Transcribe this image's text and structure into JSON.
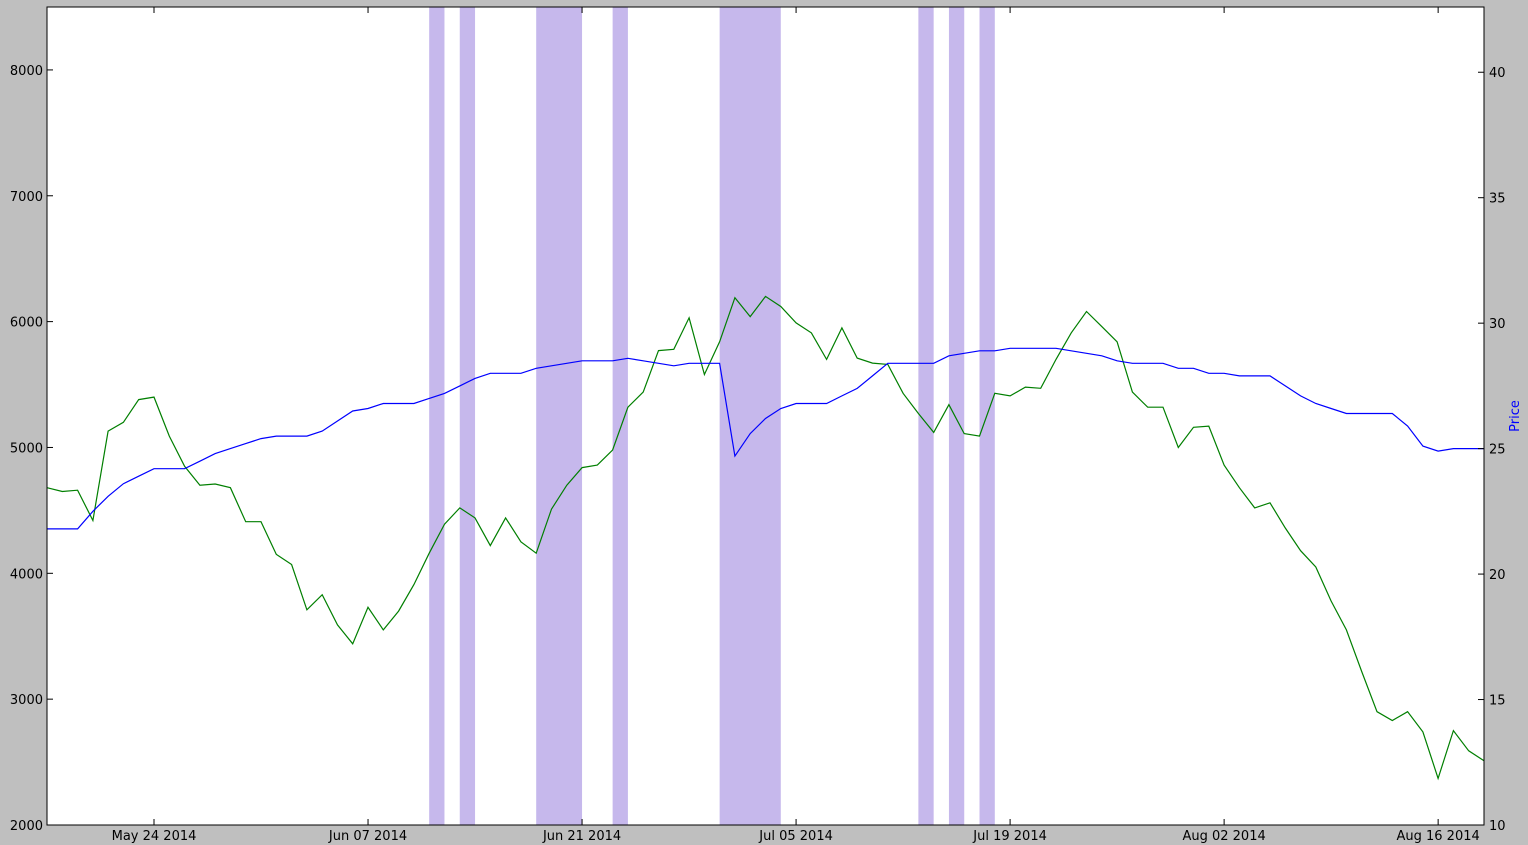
{
  "chart_data": {
    "type": "line",
    "title": "",
    "xlabel": "",
    "ylabel_left": "",
    "ylabel_right": "Price",
    "grid": false,
    "x_range": [
      "2014-05-17",
      "2014-08-19"
    ],
    "x_ticks": [
      {
        "date": "2014-05-24",
        "label": "May 24 2014"
      },
      {
        "date": "2014-06-07",
        "label": "Jun 07 2014"
      },
      {
        "date": "2014-06-21",
        "label": "Jun 21 2014"
      },
      {
        "date": "2014-07-05",
        "label": "Jul 05 2014"
      },
      {
        "date": "2014-07-19",
        "label": "Jul 19 2014"
      },
      {
        "date": "2014-08-02",
        "label": "Aug 02 2014"
      },
      {
        "date": "2014-08-16",
        "label": "Aug 16 2014"
      }
    ],
    "y_left": {
      "min": 2000,
      "max": 8500,
      "ticks": [
        2000,
        3000,
        4000,
        5000,
        6000,
        7000,
        8000
      ]
    },
    "y_right": {
      "min": 10,
      "max": 42.6,
      "ticks": [
        10,
        15,
        20,
        25,
        30,
        35,
        40
      ]
    },
    "shaded_ranges": [
      [
        "2014-06-11",
        "2014-06-12"
      ],
      [
        "2014-06-13",
        "2014-06-14"
      ],
      [
        "2014-06-18",
        "2014-06-21"
      ],
      [
        "2014-06-23",
        "2014-06-24"
      ],
      [
        "2014-06-30",
        "2014-07-04"
      ],
      [
        "2014-07-13",
        "2014-07-14"
      ],
      [
        "2014-07-15",
        "2014-07-16"
      ],
      [
        "2014-07-17",
        "2014-07-18"
      ]
    ],
    "shade_color": "#c6b8ec",
    "series": [
      {
        "axis": "left",
        "color": "#007f00",
        "x": [
          "2014-05-17",
          "2014-05-18",
          "2014-05-19",
          "2014-05-20",
          "2014-05-21",
          "2014-05-22",
          "2014-05-23",
          "2014-05-24",
          "2014-05-25",
          "2014-05-26",
          "2014-05-27",
          "2014-05-28",
          "2014-05-29",
          "2014-05-30",
          "2014-05-31",
          "2014-06-01",
          "2014-06-02",
          "2014-06-03",
          "2014-06-04",
          "2014-06-05",
          "2014-06-06",
          "2014-06-07",
          "2014-06-08",
          "2014-06-09",
          "2014-06-10",
          "2014-06-11",
          "2014-06-12",
          "2014-06-13",
          "2014-06-14",
          "2014-06-15",
          "2014-06-16",
          "2014-06-17",
          "2014-06-18",
          "2014-06-19",
          "2014-06-20",
          "2014-06-21",
          "2014-06-22",
          "2014-06-23",
          "2014-06-24",
          "2014-06-25",
          "2014-06-26",
          "2014-06-27",
          "2014-06-28",
          "2014-06-29",
          "2014-06-30",
          "2014-07-01",
          "2014-07-02",
          "2014-07-03",
          "2014-07-04",
          "2014-07-05",
          "2014-07-06",
          "2014-07-07",
          "2014-07-08",
          "2014-07-09",
          "2014-07-10",
          "2014-07-11",
          "2014-07-12",
          "2014-07-13",
          "2014-07-14",
          "2014-07-15",
          "2014-07-16",
          "2014-07-17",
          "2014-07-18",
          "2014-07-19",
          "2014-07-20",
          "2014-07-21",
          "2014-07-22",
          "2014-07-23",
          "2014-07-24",
          "2014-07-25",
          "2014-07-26",
          "2014-07-27",
          "2014-07-28",
          "2014-07-29",
          "2014-07-30",
          "2014-07-31",
          "2014-08-01",
          "2014-08-02",
          "2014-08-03",
          "2014-08-04",
          "2014-08-05",
          "2014-08-06",
          "2014-08-07",
          "2014-08-08",
          "2014-08-09",
          "2014-08-10",
          "2014-08-11",
          "2014-08-12",
          "2014-08-13",
          "2014-08-14",
          "2014-08-15",
          "2014-08-16",
          "2014-08-17",
          "2014-08-18",
          "2014-08-19"
        ],
        "y": [
          4680,
          4650,
          4660,
          4420,
          5130,
          5200,
          5380,
          5400,
          5090,
          4850,
          4700,
          4710,
          4680,
          4410,
          4410,
          4150,
          4070,
          3710,
          3830,
          3590,
          3440,
          3730,
          3550,
          3700,
          3910,
          4160,
          4390,
          4520,
          4440,
          4220,
          4440,
          4250,
          4160,
          4510,
          4700,
          4840,
          4860,
          4980,
          5320,
          5440,
          5770,
          5780,
          6030,
          5580,
          5840,
          6190,
          6040,
          6200,
          6120,
          5990,
          5910,
          5700,
          5950,
          5710,
          5670,
          5660,
          5430,
          5270,
          5120,
          5340,
          5110,
          5090,
          5430,
          5410,
          5480,
          5470,
          5700,
          5910,
          6080,
          5960,
          5840,
          5440,
          5320,
          5320,
          5000,
          5160,
          5170,
          4860,
          4680,
          4520,
          4560,
          4360,
          4180,
          4050,
          3780,
          3550,
          3220,
          2900,
          2830,
          2900,
          2740,
          2370,
          2750,
          2590,
          2510
        ]
      },
      {
        "axis": "right",
        "color": "#0000ff",
        "x": [
          "2014-05-17",
          "2014-05-18",
          "2014-05-19",
          "2014-05-20",
          "2014-05-21",
          "2014-05-22",
          "2014-05-23",
          "2014-05-24",
          "2014-05-25",
          "2014-05-26",
          "2014-05-27",
          "2014-05-28",
          "2014-05-29",
          "2014-05-30",
          "2014-05-31",
          "2014-06-01",
          "2014-06-02",
          "2014-06-03",
          "2014-06-04",
          "2014-06-05",
          "2014-06-06",
          "2014-06-07",
          "2014-06-08",
          "2014-06-09",
          "2014-06-10",
          "2014-06-11",
          "2014-06-12",
          "2014-06-13",
          "2014-06-14",
          "2014-06-15",
          "2014-06-16",
          "2014-06-17",
          "2014-06-18",
          "2014-06-19",
          "2014-06-20",
          "2014-06-21",
          "2014-06-22",
          "2014-06-23",
          "2014-06-24",
          "2014-06-25",
          "2014-06-26",
          "2014-06-27",
          "2014-06-28",
          "2014-06-29",
          "2014-06-30",
          "2014-07-01",
          "2014-07-02",
          "2014-07-03",
          "2014-07-04",
          "2014-07-05",
          "2014-07-06",
          "2014-07-07",
          "2014-07-08",
          "2014-07-09",
          "2014-07-10",
          "2014-07-11",
          "2014-07-12",
          "2014-07-13",
          "2014-07-14",
          "2014-07-15",
          "2014-07-16",
          "2014-07-17",
          "2014-07-18",
          "2014-07-19",
          "2014-07-20",
          "2014-07-21",
          "2014-07-22",
          "2014-07-23",
          "2014-07-24",
          "2014-07-25",
          "2014-07-26",
          "2014-07-27",
          "2014-07-28",
          "2014-07-29",
          "2014-07-30",
          "2014-07-31",
          "2014-08-01",
          "2014-08-02",
          "2014-08-03",
          "2014-08-04",
          "2014-08-05",
          "2014-08-06",
          "2014-08-07",
          "2014-08-08",
          "2014-08-09",
          "2014-08-10",
          "2014-08-11",
          "2014-08-12",
          "2014-08-13",
          "2014-08-14",
          "2014-08-15",
          "2014-08-16",
          "2014-08-17",
          "2014-08-18",
          "2014-08-19"
        ],
        "y": [
          21.8,
          21.8,
          21.8,
          22.5,
          23.1,
          23.6,
          23.9,
          24.2,
          24.2,
          24.2,
          24.5,
          24.8,
          25.0,
          25.2,
          25.4,
          25.5,
          25.5,
          25.5,
          25.7,
          26.1,
          26.5,
          26.6,
          26.8,
          26.8,
          26.8,
          27.0,
          27.2,
          27.5,
          27.8,
          28.0,
          28.0,
          28.0,
          28.2,
          28.3,
          28.4,
          28.5,
          28.5,
          28.5,
          28.6,
          28.5,
          28.4,
          28.3,
          28.4,
          28.4,
          28.4,
          24.7,
          25.6,
          26.2,
          26.6,
          26.8,
          26.8,
          26.8,
          27.1,
          27.4,
          27.9,
          28.4,
          28.4,
          28.4,
          28.4,
          28.7,
          28.8,
          28.9,
          28.9,
          29.0,
          29.0,
          29.0,
          29.0,
          28.9,
          28.8,
          28.7,
          28.5,
          28.4,
          28.4,
          28.4,
          28.2,
          28.2,
          28.0,
          28.0,
          27.9,
          27.9,
          27.9,
          27.5,
          27.1,
          26.8,
          26.6,
          26.4,
          26.4,
          26.4,
          26.4,
          25.9,
          25.1,
          24.9,
          25.0,
          25.0,
          25.0
        ]
      }
    ]
  }
}
